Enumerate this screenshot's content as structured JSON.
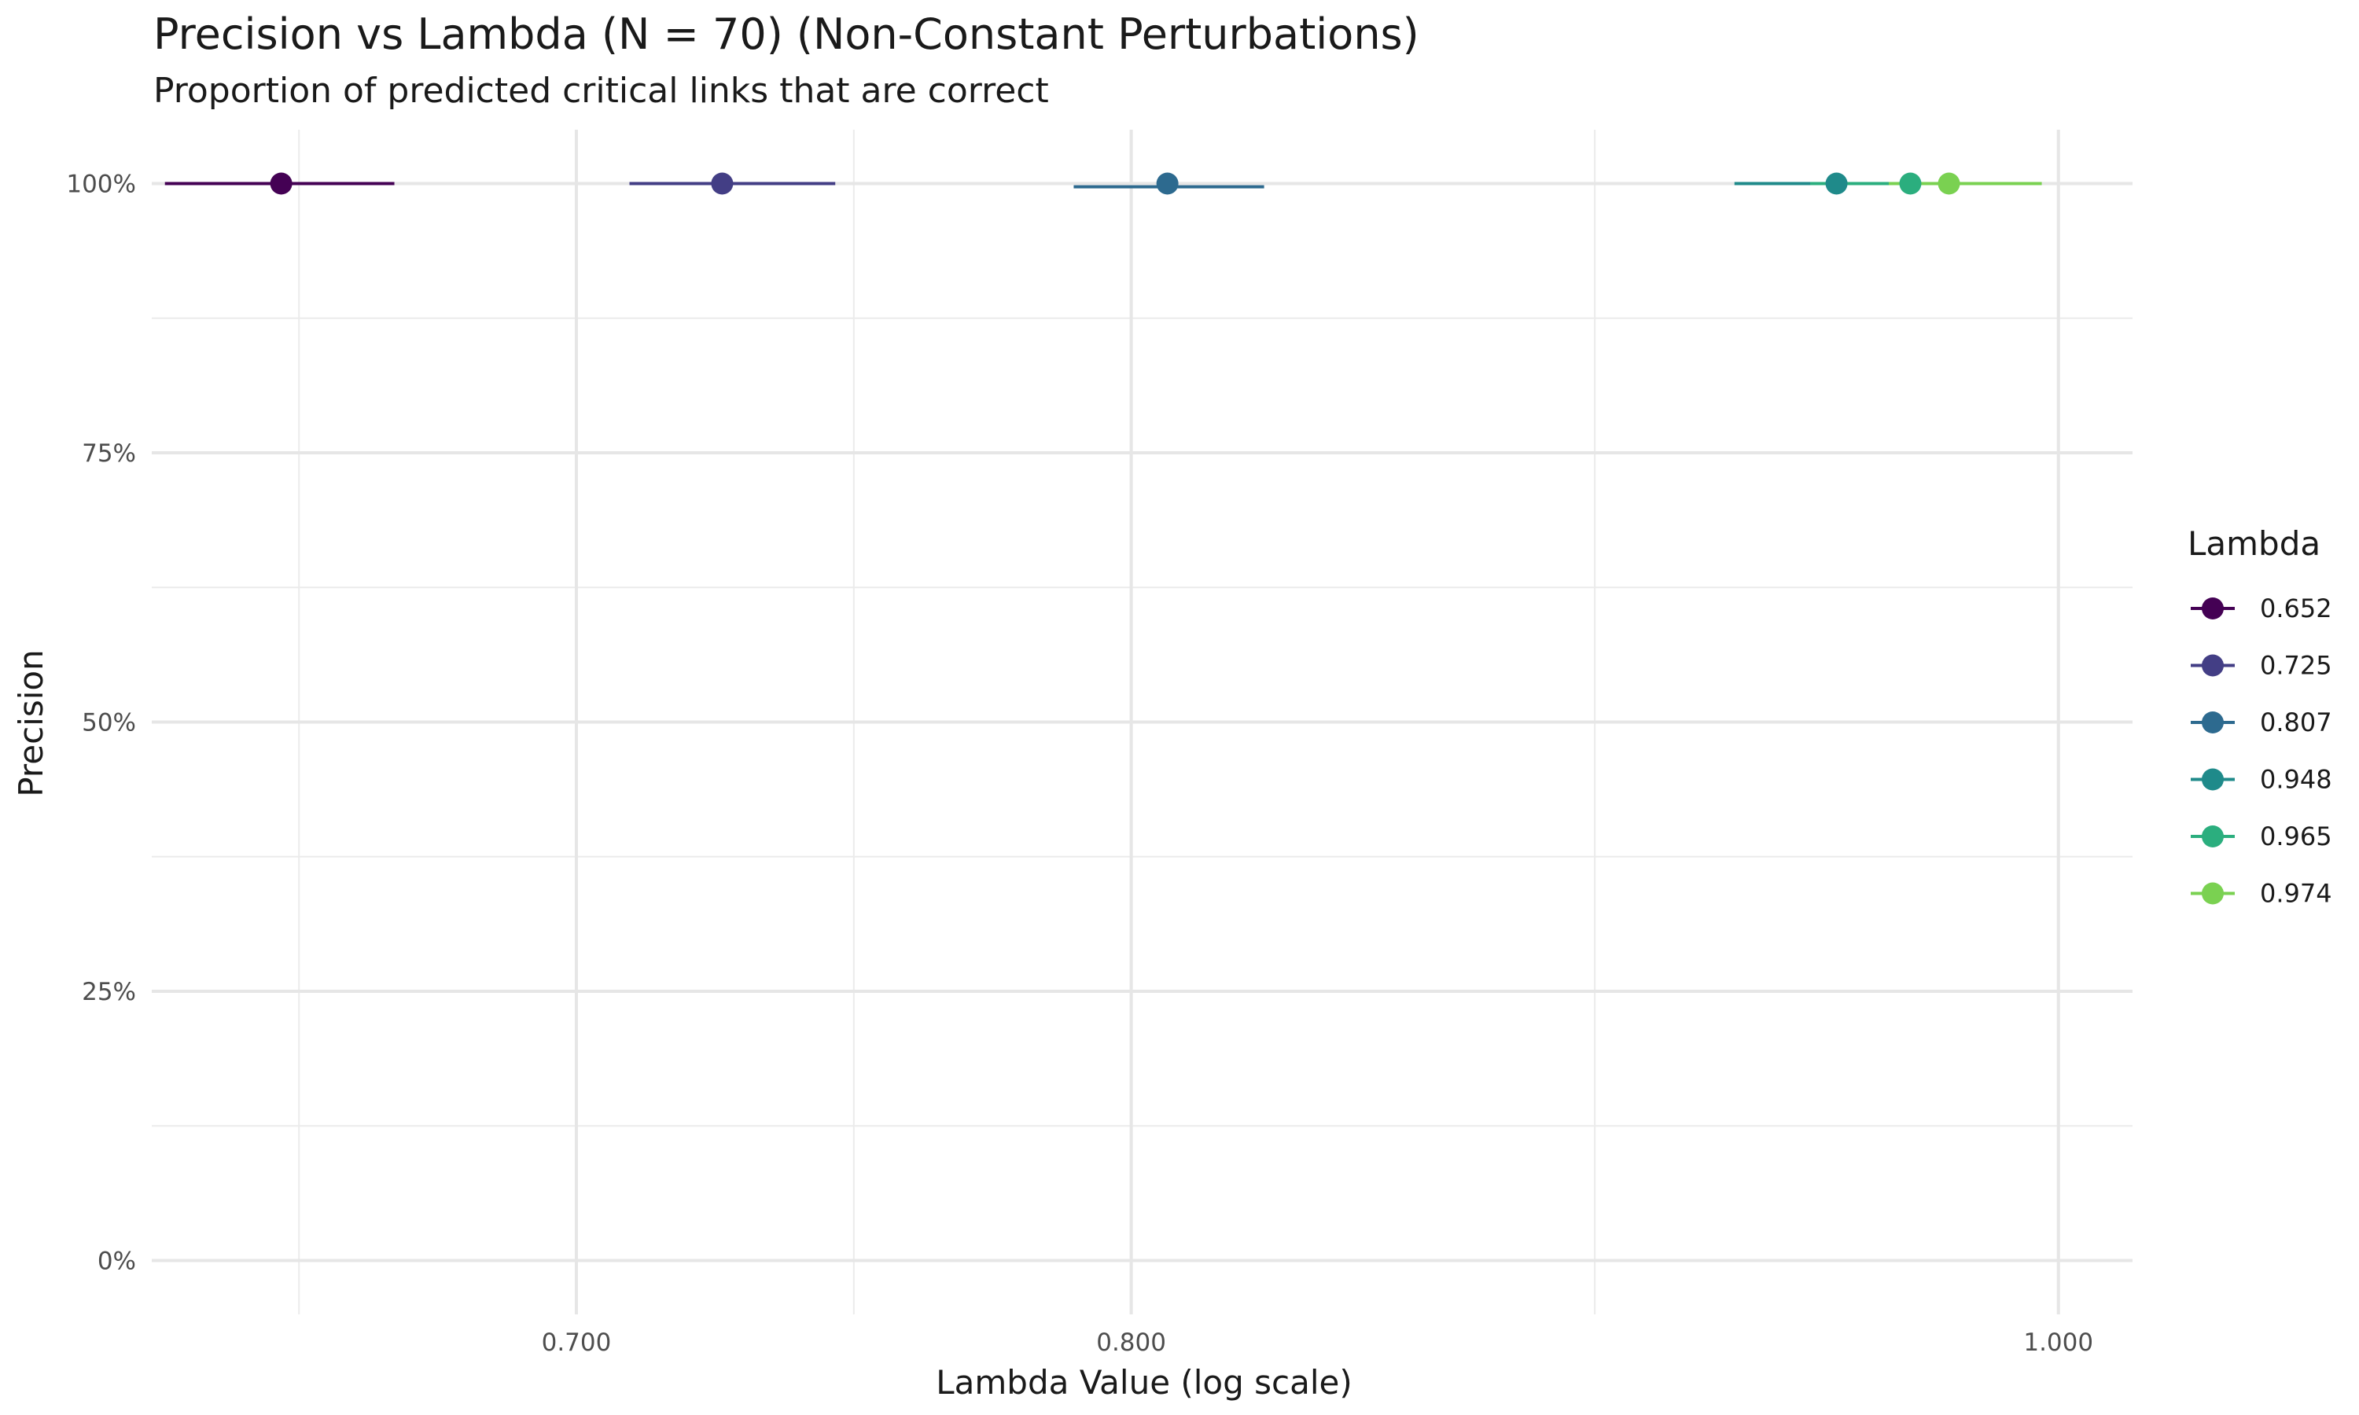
{
  "chart_data": {
    "type": "scatter",
    "title": "Precision vs Lambda (N = 70) (Non-Constant Perturbations)",
    "subtitle": "Proportion of predicted critical links that are correct",
    "xlabel": "Lambda Value (log scale)",
    "ylabel": "Precision",
    "x_scale": "log",
    "xlim": [
      0.632,
      1.018
    ],
    "ylim": [
      -0.05,
      1.05
    ],
    "x_ticks": [
      0.7,
      0.8,
      1.0
    ],
    "x_tick_labels": [
      "0.700",
      "0.800",
      "1.000"
    ],
    "y_ticks": [
      0,
      0.25,
      0.5,
      0.75,
      1.0
    ],
    "y_tick_labels": [
      "0%",
      "25%",
      "50%",
      "75%",
      "100%"
    ],
    "grid": true,
    "legend": {
      "title": "Lambda",
      "position": "right"
    },
    "series": [
      {
        "name": "0.652",
        "color": "#440154",
        "x": 0.652,
        "y": 1.0,
        "xmin": 0.634,
        "xmax": 0.67
      },
      {
        "name": "0.725",
        "color": "#433E85",
        "x": 0.725,
        "y": 1.0,
        "xmin": 0.709,
        "xmax": 0.745
      },
      {
        "name": "0.807",
        "color": "#2D6A8F",
        "x": 0.807,
        "y": 1.0,
        "xmin": 0.789,
        "xmax": 0.826,
        "y_line": 0.997
      },
      {
        "name": "0.948",
        "color": "#1F8A8A",
        "x": 0.948,
        "y": 1.0,
        "xmin": 0.925,
        "xmax": 0.985
      },
      {
        "name": "0.965",
        "color": "#2BAE7E",
        "x": 0.965,
        "y": 1.0,
        "xmin": 0.942,
        "xmax": 0.99
      },
      {
        "name": "0.974",
        "color": "#7AD151",
        "x": 0.974,
        "y": 1.0,
        "xmin": 0.96,
        "xmax": 0.996
      }
    ]
  }
}
